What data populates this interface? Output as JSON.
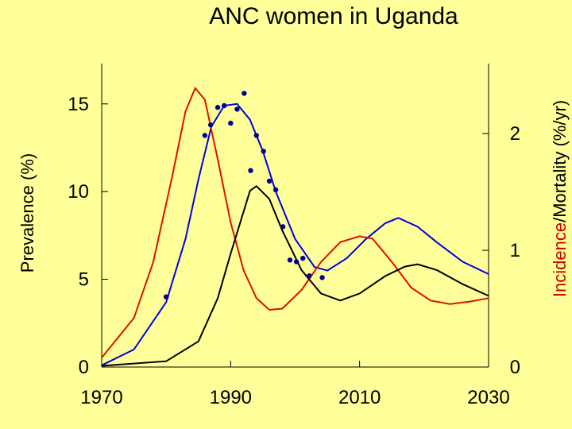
{
  "chart_data": {
    "type": "line",
    "title": "ANC women in Uganda",
    "ylabel": "Prevalence (%)",
    "y2label": [
      "Incidence",
      "/Mortality (%/yr)"
    ],
    "xlim": [
      1970,
      2030
    ],
    "xticks": [
      1970,
      1990,
      2010,
      2030
    ],
    "ylim": [
      0,
      17.3
    ],
    "yticks": [
      0,
      5,
      10,
      15
    ],
    "y2lim": [
      0,
      2.6
    ],
    "y2ticks": [
      0,
      1,
      2
    ],
    "series": [
      {
        "name": "Prevalence",
        "color": "#0000dd",
        "axis": "y",
        "x": [
          1970,
          1975,
          1980,
          1983,
          1985,
          1987,
          1989,
          1991,
          1993,
          1995,
          1997,
          2000,
          2003,
          2005,
          2008,
          2011,
          2014,
          2016,
          2019,
          2022,
          2026,
          2030
        ],
        "values": [
          0.1,
          1.0,
          3.7,
          7.3,
          10.7,
          13.7,
          14.9,
          15.0,
          14.1,
          12.3,
          10.0,
          7.3,
          5.7,
          5.5,
          6.2,
          7.3,
          8.2,
          8.5,
          8.0,
          7.1,
          6.0,
          5.3
        ]
      },
      {
        "name": "Incidence",
        "color": "#dd1100",
        "axis": "y2",
        "x": [
          1970,
          1975,
          1978,
          1981,
          1983,
          1984.5,
          1986,
          1988,
          1990,
          1992,
          1994,
          1996,
          1998,
          2001,
          2004,
          2007,
          2010,
          2012,
          2015,
          2018,
          2021,
          2024,
          2027,
          2030
        ],
        "values": [
          0.08,
          0.42,
          0.9,
          1.65,
          2.19,
          2.39,
          2.29,
          1.78,
          1.24,
          0.83,
          0.59,
          0.49,
          0.5,
          0.66,
          0.9,
          1.07,
          1.12,
          1.1,
          0.9,
          0.68,
          0.57,
          0.54,
          0.56,
          0.59
        ]
      },
      {
        "name": "Mortality",
        "color": "#000000",
        "axis": "y2",
        "x": [
          1970,
          1980,
          1985,
          1988,
          1990,
          1993,
          1994,
          1996,
          1998,
          2001,
          2004,
          2007,
          2010,
          2014,
          2017,
          2019,
          2022,
          2026,
          2030
        ],
        "values": [
          0.01,
          0.05,
          0.22,
          0.59,
          0.97,
          1.51,
          1.55,
          1.44,
          1.17,
          0.83,
          0.63,
          0.57,
          0.63,
          0.78,
          0.86,
          0.88,
          0.83,
          0.71,
          0.61
        ]
      }
    ],
    "points": {
      "color": "#000099",
      "x": [
        1980.0,
        1986.0,
        1986.9,
        1988.0,
        1989.0,
        1990.0,
        1991.0,
        1992.1,
        1993.1,
        1994.0,
        1995.1,
        1996.0,
        1997.0,
        1998.1,
        1999.2,
        2000.2,
        2001.2,
        2002.2,
        2004.2
      ],
      "values": [
        4.0,
        13.2,
        13.8,
        14.8,
        14.9,
        13.9,
        14.7,
        15.6,
        11.2,
        13.2,
        12.3,
        10.6,
        10.1,
        8.0,
        6.1,
        6.0,
        6.2,
        5.2,
        5.1
      ]
    }
  }
}
